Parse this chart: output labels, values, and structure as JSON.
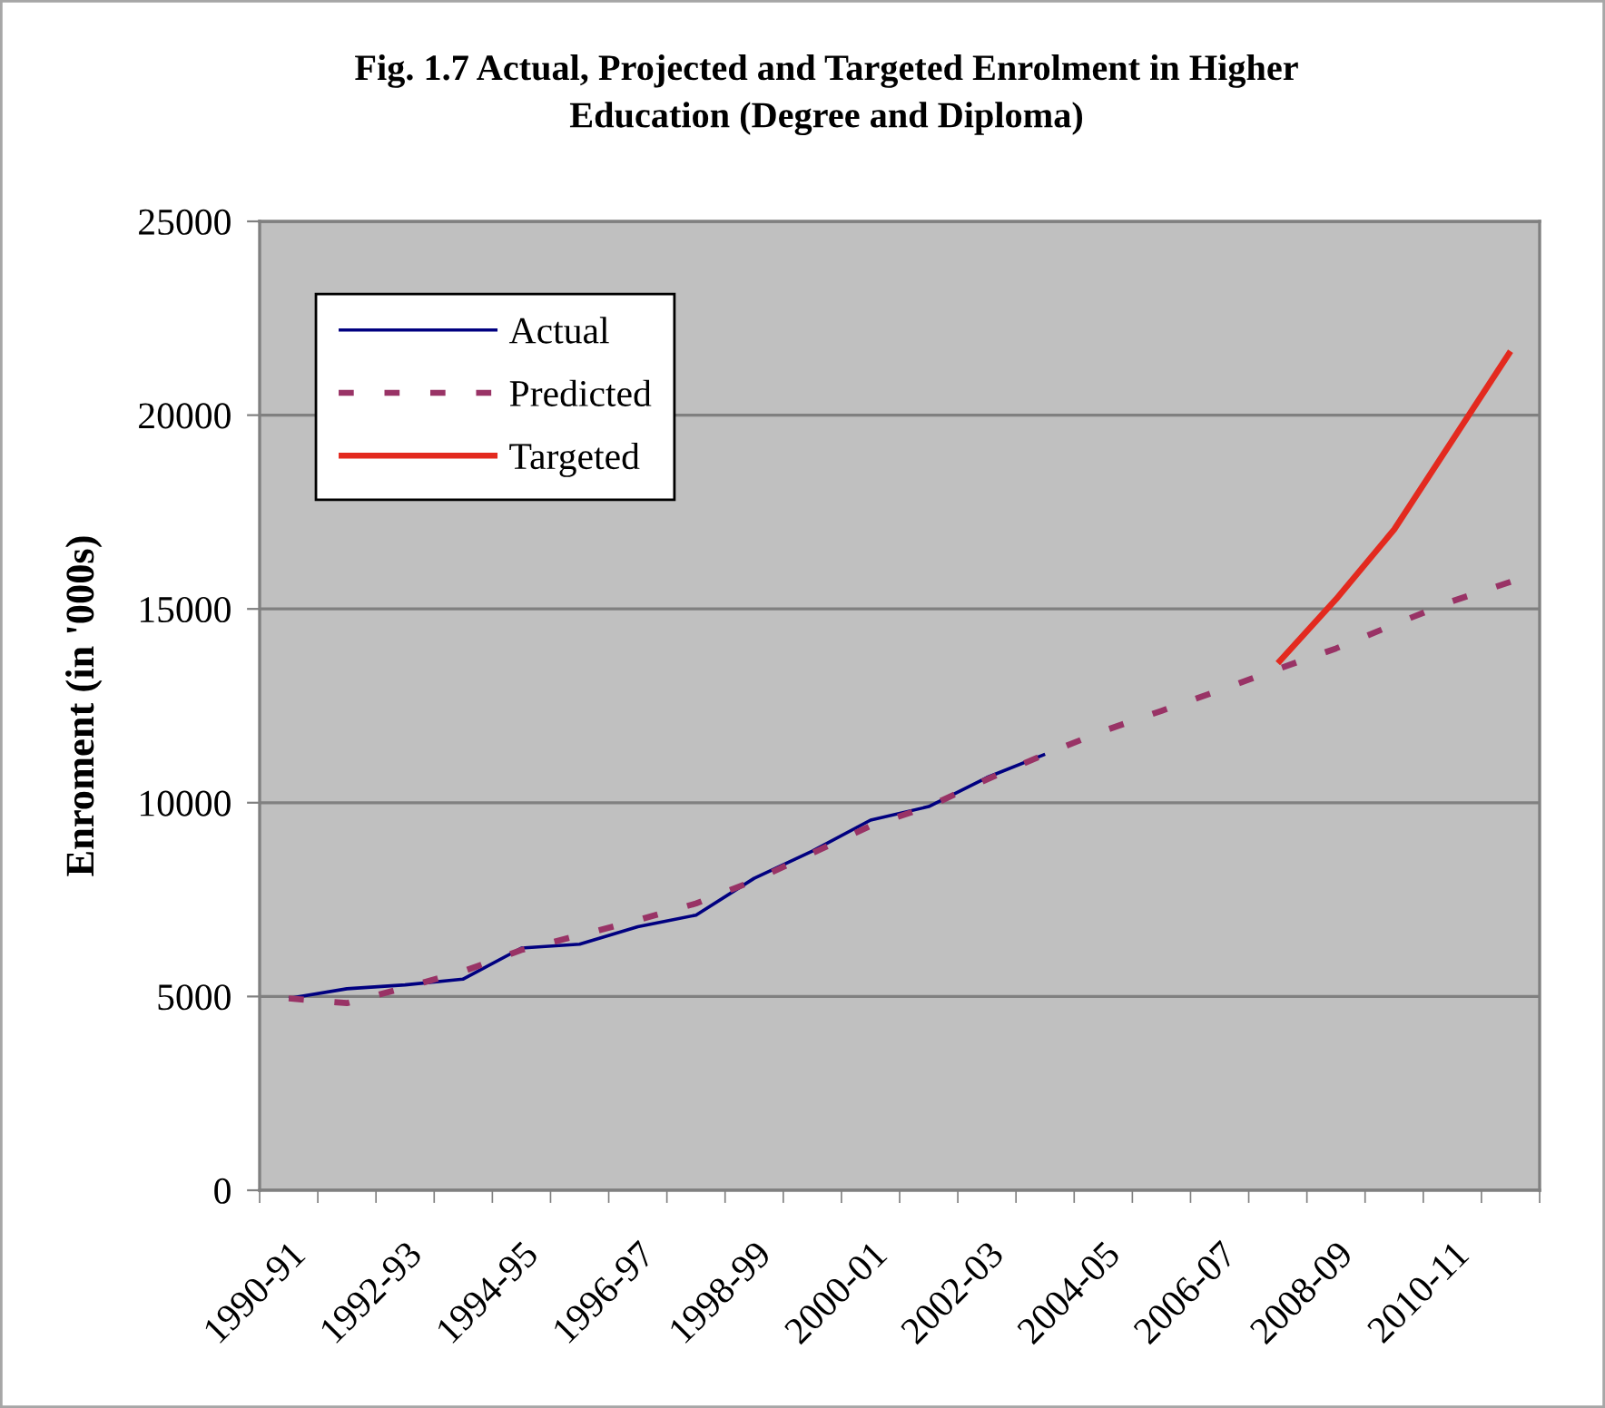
{
  "chart_data": {
    "type": "line",
    "title": "Fig. 1.7 Actual, Projected and Targeted Enrolment in Higher\nEducation (Degree and Diploma)",
    "ylabel": "Enroment (in '000s)",
    "categories": [
      "1990-91",
      null,
      "1992-93",
      null,
      "1994-95",
      null,
      "1996-97",
      null,
      "1998-99",
      null,
      "2000-01",
      null,
      "2002-03",
      null,
      "2004-05",
      null,
      "2006-07",
      null,
      "2008-09",
      null,
      "2010-11",
      null
    ],
    "series": [
      {
        "name": "Actual",
        "color": "#000080",
        "line_style": "solid",
        "values": [
          4950,
          5200,
          5300,
          5450,
          6250,
          6350,
          6800,
          7100,
          8050,
          8750,
          9550,
          9900,
          10650,
          11250,
          null,
          null,
          null,
          null,
          null,
          null,
          null,
          null
        ]
      },
      {
        "name": "Predicted",
        "color": "#993366",
        "line_style": "dashed",
        "values": [
          4950,
          4830,
          5230,
          5650,
          6200,
          6580,
          6970,
          7400,
          7990,
          8700,
          9400,
          9900,
          10600,
          11250,
          11850,
          12370,
          12900,
          13450,
          13980,
          14600,
          15200,
          15700
        ]
      },
      {
        "name": "Targeted",
        "color": "#e32a1f",
        "line_style": "solid",
        "values": [
          null,
          null,
          null,
          null,
          null,
          null,
          null,
          null,
          null,
          null,
          null,
          null,
          null,
          null,
          null,
          null,
          null,
          13600,
          15250,
          17050,
          19350,
          21650
        ]
      }
    ],
    "ylim": [
      0,
      25000
    ],
    "yticks": [
      0,
      5000,
      10000,
      15000,
      20000,
      25000
    ],
    "grid": "y",
    "legend": "top left"
  }
}
